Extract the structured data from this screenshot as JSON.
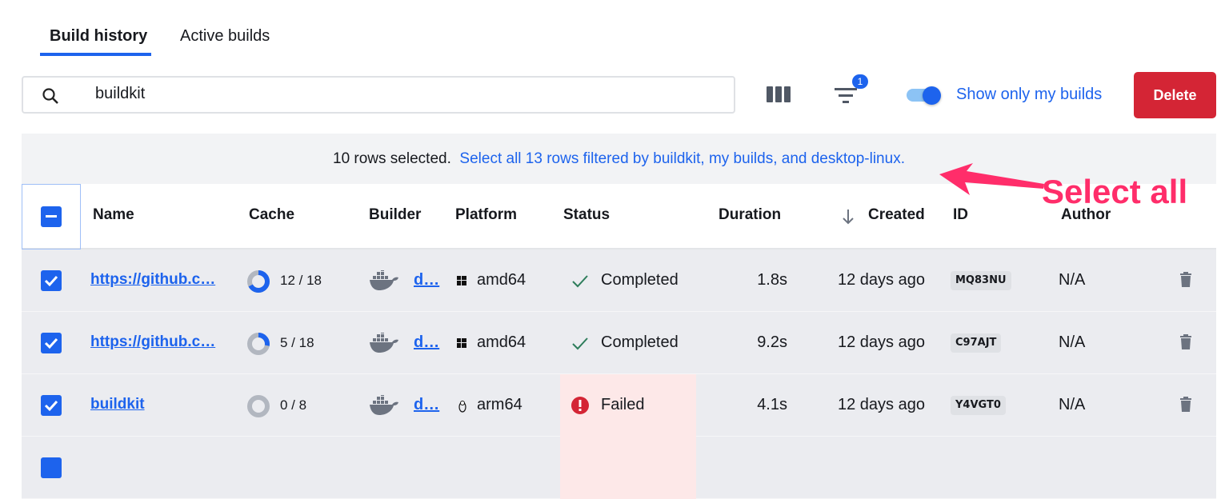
{
  "tabs": [
    {
      "label": "Build history",
      "active": true
    },
    {
      "label": "Active builds",
      "active": false
    }
  ],
  "search": {
    "value": "buildkit",
    "icon": "search-icon"
  },
  "toolbar": {
    "columns_icon": "columns-icon",
    "filter_icon": "filter-icon",
    "filter_badge": "1",
    "toggle_on": true,
    "toggle_label": "Show only my builds",
    "delete_label": "Delete"
  },
  "banner": {
    "selected": "10 rows selected.",
    "select_all": "Select all 13 rows filtered by buildkit, my builds, and desktop-linux."
  },
  "columns": [
    "Name",
    "Cache",
    "Builder",
    "Platform",
    "Status",
    "Duration",
    "Created",
    "ID",
    "Author"
  ],
  "sort": {
    "column": "Created",
    "direction": "descending"
  },
  "rows": [
    {
      "name": "https://github.c…",
      "cache": "12 / 18",
      "cache_fraction": 0.67,
      "builder": "d…",
      "platform": "amd64",
      "platform_icon": "windows-icon",
      "status": "Completed",
      "duration": "1.8s",
      "created": "12 days ago",
      "id": "MQ83NU",
      "author": "N/A",
      "selected": true
    },
    {
      "name": "https://github.c…",
      "cache": "5 / 18",
      "cache_fraction": 0.28,
      "builder": "d…",
      "platform": "amd64",
      "platform_icon": "windows-icon",
      "status": "Completed",
      "duration": "9.2s",
      "created": "12 days ago",
      "id": "C97AJT",
      "author": "N/A",
      "selected": true
    },
    {
      "name": "buildkit",
      "cache": "0 / 8",
      "cache_fraction": 0,
      "builder": "d…",
      "platform": "arm64",
      "platform_icon": "linux-icon",
      "status": "Failed",
      "duration": "4.1s",
      "created": "12 days ago",
      "id": "Y4VGT0",
      "author": "N/A",
      "selected": true
    }
  ],
  "colors": {
    "accent": "#1d63ed",
    "danger": "#d42535",
    "annotation": "#ff2d6a",
    "row_bg": "#ebecf0",
    "success": "#2e7d5b"
  },
  "annotation": {
    "text": "Select all"
  }
}
